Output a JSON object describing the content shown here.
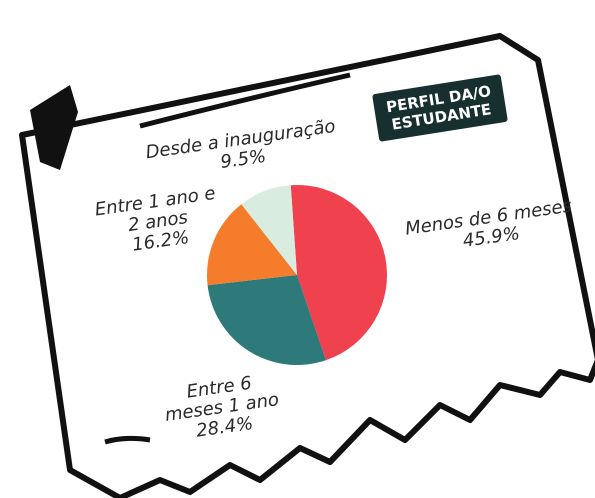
{
  "chart_data": {
    "type": "pie",
    "title": "PERFIL DA/O ESTUDANTE",
    "categories": [
      "Menos de 6 meses",
      "Entre 6 meses 1 ano",
      "Entre 1 ano e 2 anos",
      "Desde a inauguração"
    ],
    "values": [
      45.9,
      28.4,
      16.2,
      9.5
    ],
    "value_labels": [
      "45.9%",
      "28.4%",
      "16.2%",
      "9.5%"
    ],
    "colors": [
      "#f0414f",
      "#2e7a7a",
      "#f57c2a",
      "#d8ece0"
    ]
  }
}
